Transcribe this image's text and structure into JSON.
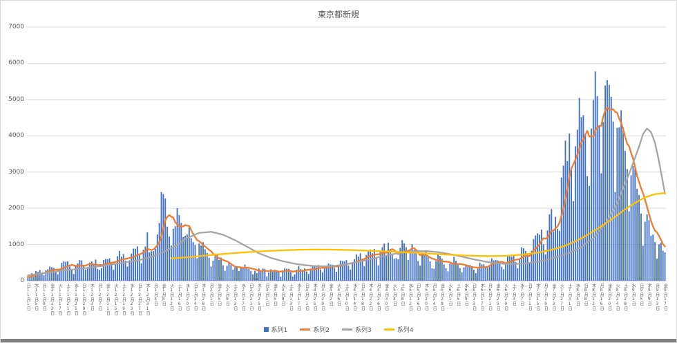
{
  "chart_data": {
    "type": "combo-bar-line",
    "title": "東京都新規",
    "ylim": [
      0,
      7000
    ],
    "yticks": [
      0,
      1000,
      2000,
      3000,
      4000,
      5000,
      6000,
      7000
    ],
    "x_start_date": "2020-11-01",
    "x_end_date": "2021-09-17",
    "x_tick_interval_days": 4,
    "x_tick_labels": [
      [
        "日",
        11,
        1
      ],
      [
        "木",
        11,
        5
      ],
      [
        "月",
        11,
        9
      ],
      [
        "金",
        11,
        13
      ],
      [
        "火",
        11,
        17
      ],
      [
        "土",
        11,
        21
      ],
      [
        "水",
        11,
        25
      ],
      [
        "日",
        11,
        29
      ],
      [
        "木",
        12,
        3
      ],
      [
        "月",
        12,
        7
      ],
      [
        "金",
        12,
        11
      ],
      [
        "火",
        12,
        15
      ],
      [
        "土",
        12,
        19
      ],
      [
        "水",
        12,
        23
      ],
      [
        "日",
        12,
        27
      ],
      [
        "木",
        12,
        31
      ],
      [
        "月",
        1,
        4
      ],
      [
        "金",
        1,
        8
      ],
      [
        "火",
        1,
        12
      ],
      [
        "土",
        1,
        16
      ],
      [
        "水",
        1,
        20
      ],
      [
        "日",
        1,
        24
      ],
      [
        "木",
        1,
        28
      ],
      [
        "月",
        2,
        1
      ],
      [
        "金",
        2,
        5
      ],
      [
        "火",
        2,
        9
      ],
      [
        "土",
        2,
        13
      ],
      [
        "水",
        2,
        17
      ],
      [
        "日",
        2,
        21
      ],
      [
        "木",
        2,
        25
      ],
      [
        "月",
        3,
        1
      ],
      [
        "金",
        3,
        5
      ],
      [
        "火",
        3,
        9
      ],
      [
        "土",
        3,
        13
      ],
      [
        "水",
        3,
        17
      ],
      [
        "日",
        3,
        21
      ],
      [
        "木",
        3,
        25
      ],
      [
        "月",
        3,
        29
      ],
      [
        "金",
        4,
        2
      ],
      [
        "火",
        4,
        6
      ],
      [
        "土",
        4,
        10
      ],
      [
        "水",
        4,
        14
      ],
      [
        "日",
        4,
        18
      ],
      [
        "木",
        4,
        22
      ],
      [
        "月",
        4,
        26
      ],
      [
        "金",
        4,
        30
      ],
      [
        "火",
        5,
        4
      ],
      [
        "土",
        5,
        8
      ],
      [
        "水",
        5,
        12
      ],
      [
        "日",
        5,
        16
      ],
      [
        "木",
        5,
        20
      ],
      [
        "月",
        5,
        24
      ],
      [
        "金",
        5,
        28
      ],
      [
        "火",
        6,
        1
      ],
      [
        "土",
        6,
        5
      ],
      [
        "水",
        6,
        9
      ],
      [
        "日",
        6,
        13
      ],
      [
        "木",
        6,
        17
      ],
      [
        "月",
        6,
        21
      ],
      [
        "金",
        6,
        25
      ],
      [
        "火",
        6,
        29
      ],
      [
        "土",
        7,
        3
      ],
      [
        "水",
        7,
        7
      ],
      [
        "日",
        7,
        11
      ],
      [
        "木",
        7,
        15
      ],
      [
        "月",
        7,
        19
      ],
      [
        "金",
        7,
        23
      ],
      [
        "火",
        7,
        27
      ],
      [
        "土",
        7,
        31
      ],
      [
        "水",
        8,
        4
      ],
      [
        "日",
        8,
        8
      ],
      [
        "木",
        8,
        12
      ],
      [
        "月",
        8,
        16
      ],
      [
        "金",
        8,
        20
      ],
      [
        "火",
        8,
        24
      ],
      [
        "土",
        8,
        28
      ],
      [
        "水",
        9,
        1
      ],
      [
        "日",
        9,
        5
      ],
      [
        "木",
        9,
        9
      ],
      [
        "月",
        9,
        13
      ],
      [
        "金",
        9,
        17
      ]
    ],
    "series": [
      {
        "name": "系列1",
        "type": "bar",
        "color": "#4472C4",
        "values": [
          116,
          87,
          209,
          122,
          269,
          242,
          294,
          189,
          157,
          293,
          317,
          393,
          374,
          352,
          255,
          180,
          298,
          493,
          534,
          522,
          539,
          391,
          314,
          186,
          401,
          481,
          570,
          561,
          418,
          311,
          372,
          500,
          533,
          449,
          584,
          327,
          299,
          352,
          572,
          602,
          595,
          621,
          480,
          305,
          460,
          678,
          822,
          664,
          736,
          556,
          392,
          563,
          748,
          888,
          884,
          949,
          708,
          481,
          856,
          944,
          1337,
          783,
          814,
          816,
          884,
          1278,
          1591,
          2447,
          2392,
          2268,
          1494,
          1219,
          970,
          1433,
          1502,
          2001,
          1809,
          1592,
          1204,
          1240,
          1274,
          1471,
          1175,
          1070,
          986,
          618,
          1026,
          973,
          1064,
          868,
          769,
          633,
          393,
          556,
          676,
          734,
          577,
          639,
          429,
          276,
          412,
          491,
          434,
          307,
          369,
          371,
          266,
          350,
          378,
          445,
          353,
          327,
          272,
          178,
          275,
          213,
          340,
          270,
          337,
          329,
          121,
          232,
          316,
          279,
          301,
          293,
          237,
          116,
          290,
          340,
          335,
          330,
          239,
          116,
          175,
          300,
          409,
          323,
          303,
          342,
          256,
          187,
          337,
          420,
          394,
          376,
          430,
          313,
          234,
          364,
          414,
          475,
          446,
          446,
          355,
          249,
          399,
          555,
          545,
          537,
          570,
          421,
          306,
          510,
          591,
          729,
          667,
          759,
          543,
          405,
          711,
          843,
          861,
          759,
          876,
          635,
          425,
          828,
          925,
          1027,
          698,
          1050,
          879,
          708,
          609,
          621,
          591,
          907,
          1121,
          1032,
          925,
          573,
          767,
          1010,
          854,
          772,
          542,
          419,
          732,
          766,
          843,
          649,
          535,
          342,
          331,
          542,
          743,
          684,
          614,
          448,
          348,
          260,
          471,
          508,
          660,
          548,
          436,
          351,
          235,
          369,
          440,
          439,
          435,
          375,
          304,
          209,
          337,
          501,
          452,
          453,
          388,
          376,
          435,
          619,
          562,
          570,
          561,
          534,
          386,
          317,
          476,
          714,
          673,
          660,
          716,
          518,
          342,
          593,
          920,
          896,
          822,
          716,
          502,
          830,
          1149,
          1249,
          1308,
          1271,
          1410,
          1008,
          727,
          1387,
          1832,
          1979,
          1359,
          1763,
          1429,
          1378,
          2848,
          3177,
          3865,
          3300,
          4058,
          3058,
          2195,
          3709,
          4166,
          5042,
          4515,
          4566,
          4066,
          2884,
          2612,
          4200,
          4989,
          5773,
          5094,
          4295,
          2962,
          4377,
          5386,
          5534,
          5405,
          5074,
          4392,
          2447,
          4220,
          4228,
          4704,
          4227,
          3581,
          3081,
          1915,
          2909,
          3168,
          3099,
          2539,
          2362,
          1853,
          968,
          1629,
          1834,
          1675,
          1242,
          1273,
          1067,
          611,
          1004,
          1052,
          831,
          782
        ]
      },
      {
        "name": "系列2",
        "type": "line",
        "color": "#ED7D31",
        "derivation": "trailing 7-day moving average of 系列1",
        "window": 7,
        "key_points": [
          [
            "1月13日",
            1830
          ],
          [
            "3月11日",
            255
          ],
          [
            "5月14日",
            900
          ],
          [
            "6月15日",
            365
          ],
          [
            "7月31日",
            2865
          ],
          [
            "8月21日",
            4720
          ],
          [
            "9月17日",
            945
          ]
        ]
      },
      {
        "name": "系列3",
        "type": "line",
        "color": "#A5A5A5",
        "anchors_day_value": [
          [
            0,
            150
          ],
          [
            8,
            210
          ],
          [
            16,
            270
          ],
          [
            24,
            320
          ],
          [
            32,
            370
          ],
          [
            40,
            430
          ],
          [
            48,
            500
          ],
          [
            56,
            570
          ],
          [
            62,
            660
          ],
          [
            68,
            790
          ],
          [
            74,
            960
          ],
          [
            80,
            1180
          ],
          [
            86,
            1320
          ],
          [
            92,
            1350
          ],
          [
            98,
            1270
          ],
          [
            104,
            1120
          ],
          [
            110,
            940
          ],
          [
            116,
            760
          ],
          [
            122,
            630
          ],
          [
            128,
            540
          ],
          [
            134,
            470
          ],
          [
            140,
            425
          ],
          [
            146,
            400
          ],
          [
            152,
            400
          ],
          [
            158,
            440
          ],
          [
            164,
            500
          ],
          [
            170,
            570
          ],
          [
            176,
            650
          ],
          [
            182,
            720
          ],
          [
            188,
            780
          ],
          [
            194,
            815
          ],
          [
            200,
            820
          ],
          [
            206,
            790
          ],
          [
            212,
            735
          ],
          [
            218,
            665
          ],
          [
            224,
            590
          ],
          [
            230,
            525
          ],
          [
            236,
            480
          ],
          [
            242,
            460
          ],
          [
            248,
            470
          ],
          [
            254,
            510
          ],
          [
            260,
            570
          ],
          [
            266,
            660
          ],
          [
            272,
            770
          ],
          [
            278,
            930
          ],
          [
            284,
            1180
          ],
          [
            290,
            1560
          ],
          [
            296,
            2150
          ],
          [
            302,
            2950
          ],
          [
            307,
            3700
          ],
          [
            309,
            4050
          ],
          [
            311,
            4200
          ],
          [
            313,
            4100
          ],
          [
            315,
            3800
          ],
          [
            317,
            3300
          ],
          [
            320,
            2400
          ]
        ]
      },
      {
        "name": "系列4",
        "type": "line",
        "color": "#FFC000",
        "anchors_day_value": [
          [
            72,
            620
          ],
          [
            80,
            645
          ],
          [
            88,
            690
          ],
          [
            96,
            730
          ],
          [
            104,
            765
          ],
          [
            112,
            795
          ],
          [
            120,
            820
          ],
          [
            128,
            840
          ],
          [
            136,
            855
          ],
          [
            144,
            862
          ],
          [
            152,
            860
          ],
          [
            160,
            850
          ],
          [
            168,
            835
          ],
          [
            176,
            818
          ],
          [
            184,
            800
          ],
          [
            192,
            778
          ],
          [
            200,
            755
          ],
          [
            208,
            730
          ],
          [
            216,
            705
          ],
          [
            224,
            688
          ],
          [
            232,
            680
          ],
          [
            240,
            688
          ],
          [
            248,
            718
          ],
          [
            256,
            775
          ],
          [
            262,
            840
          ],
          [
            268,
            930
          ],
          [
            274,
            1060
          ],
          [
            280,
            1230
          ],
          [
            286,
            1430
          ],
          [
            292,
            1650
          ],
          [
            298,
            1890
          ],
          [
            304,
            2120
          ],
          [
            310,
            2300
          ],
          [
            315,
            2390
          ],
          [
            320,
            2420
          ]
        ]
      }
    ],
    "legend": {
      "position": "bottom",
      "entries": [
        {
          "label": "系列1",
          "color": "#4472C4",
          "marker": "square"
        },
        {
          "label": "系列2",
          "color": "#ED7D31",
          "marker": "line"
        },
        {
          "label": "系列3",
          "color": "#A5A5A5",
          "marker": "line"
        },
        {
          "label": "系列4",
          "color": "#FFC000",
          "marker": "line"
        }
      ]
    },
    "annotations": [
      {
        "text": "ha",
        "day_index": 114,
        "position": "on x-axis between 2月21日 and 2月25日 labels"
      }
    ],
    "grid": true,
    "colors": {
      "gridline": "#D9D9D9",
      "axis_line": "#BFBFBF",
      "text": "#595959",
      "background": "#FFFFFF",
      "border": "#D9D9D9",
      "bottom_strip": "#7F7F7F"
    }
  }
}
